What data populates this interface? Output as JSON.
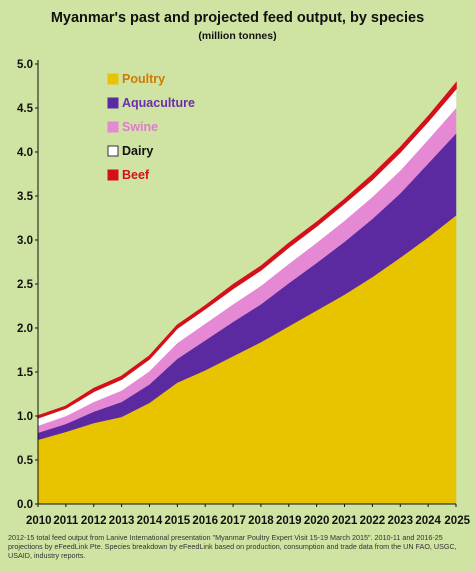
{
  "chart_data": {
    "type": "area",
    "title": "Myanmar's past and projected feed output, by species",
    "subtitle": "(million tonnes)",
    "xlabel": "",
    "ylabel": "",
    "stacked": true,
    "x": [
      "2010",
      "2011",
      "2012",
      "2013",
      "2014",
      "2015",
      "2016",
      "2017",
      "2018",
      "2019",
      "2020",
      "2021",
      "2022",
      "2023",
      "2024",
      "2025"
    ],
    "ylim": [
      0,
      5.0
    ],
    "yticks": [
      "0.0",
      "0.5",
      "1.0",
      "1.5",
      "2.0",
      "2.5",
      "3.0",
      "3.5",
      "4.0",
      "4.5",
      "5.0"
    ],
    "grid": false,
    "legend_position": "top-left",
    "series": [
      {
        "name": "Poultry",
        "color": "#e8c400",
        "label_color": "#d07a00",
        "values": [
          0.73,
          0.82,
          0.92,
          0.99,
          1.15,
          1.38,
          1.52,
          1.68,
          1.84,
          2.02,
          2.2,
          2.38,
          2.58,
          2.8,
          3.03,
          3.28
        ]
      },
      {
        "name": "Aquaculture",
        "color": "#5b2aa0",
        "label_color": "#6a2eaa",
        "values": [
          0.08,
          0.09,
          0.13,
          0.17,
          0.21,
          0.27,
          0.34,
          0.39,
          0.43,
          0.49,
          0.54,
          0.6,
          0.66,
          0.73,
          0.84,
          0.93
        ]
      },
      {
        "name": "Swine",
        "color": "#e589d4",
        "label_color": "#e07ad0",
        "values": [
          0.08,
          0.09,
          0.11,
          0.13,
          0.15,
          0.18,
          0.19,
          0.2,
          0.21,
          0.22,
          0.23,
          0.24,
          0.25,
          0.26,
          0.27,
          0.29
        ]
      },
      {
        "name": "Dairy",
        "color": "#ffffff",
        "label_color": "#111111",
        "values": [
          0.09,
          0.09,
          0.12,
          0.13,
          0.14,
          0.17,
          0.17,
          0.18,
          0.18,
          0.19,
          0.19,
          0.2,
          0.2,
          0.21,
          0.21,
          0.22
        ]
      },
      {
        "name": "Beef",
        "color": "#d4101a",
        "label_color": "#d4101a",
        "values": [
          0.02,
          0.02,
          0.03,
          0.03,
          0.03,
          0.03,
          0.03,
          0.04,
          0.04,
          0.04,
          0.04,
          0.04,
          0.05,
          0.05,
          0.05,
          0.06
        ]
      }
    ]
  },
  "footnote": "2012-15 total feed output from Lanive International presentation \"Myanmar Poultry Expert Visit 15-19 March 2015\". 2010-11 and 2016-25 projections by eFeedLink Pte. Species breakdown by eFeedLink based on production, consumption and trade data from the UN FAO, USGC, USAID, industry reports."
}
